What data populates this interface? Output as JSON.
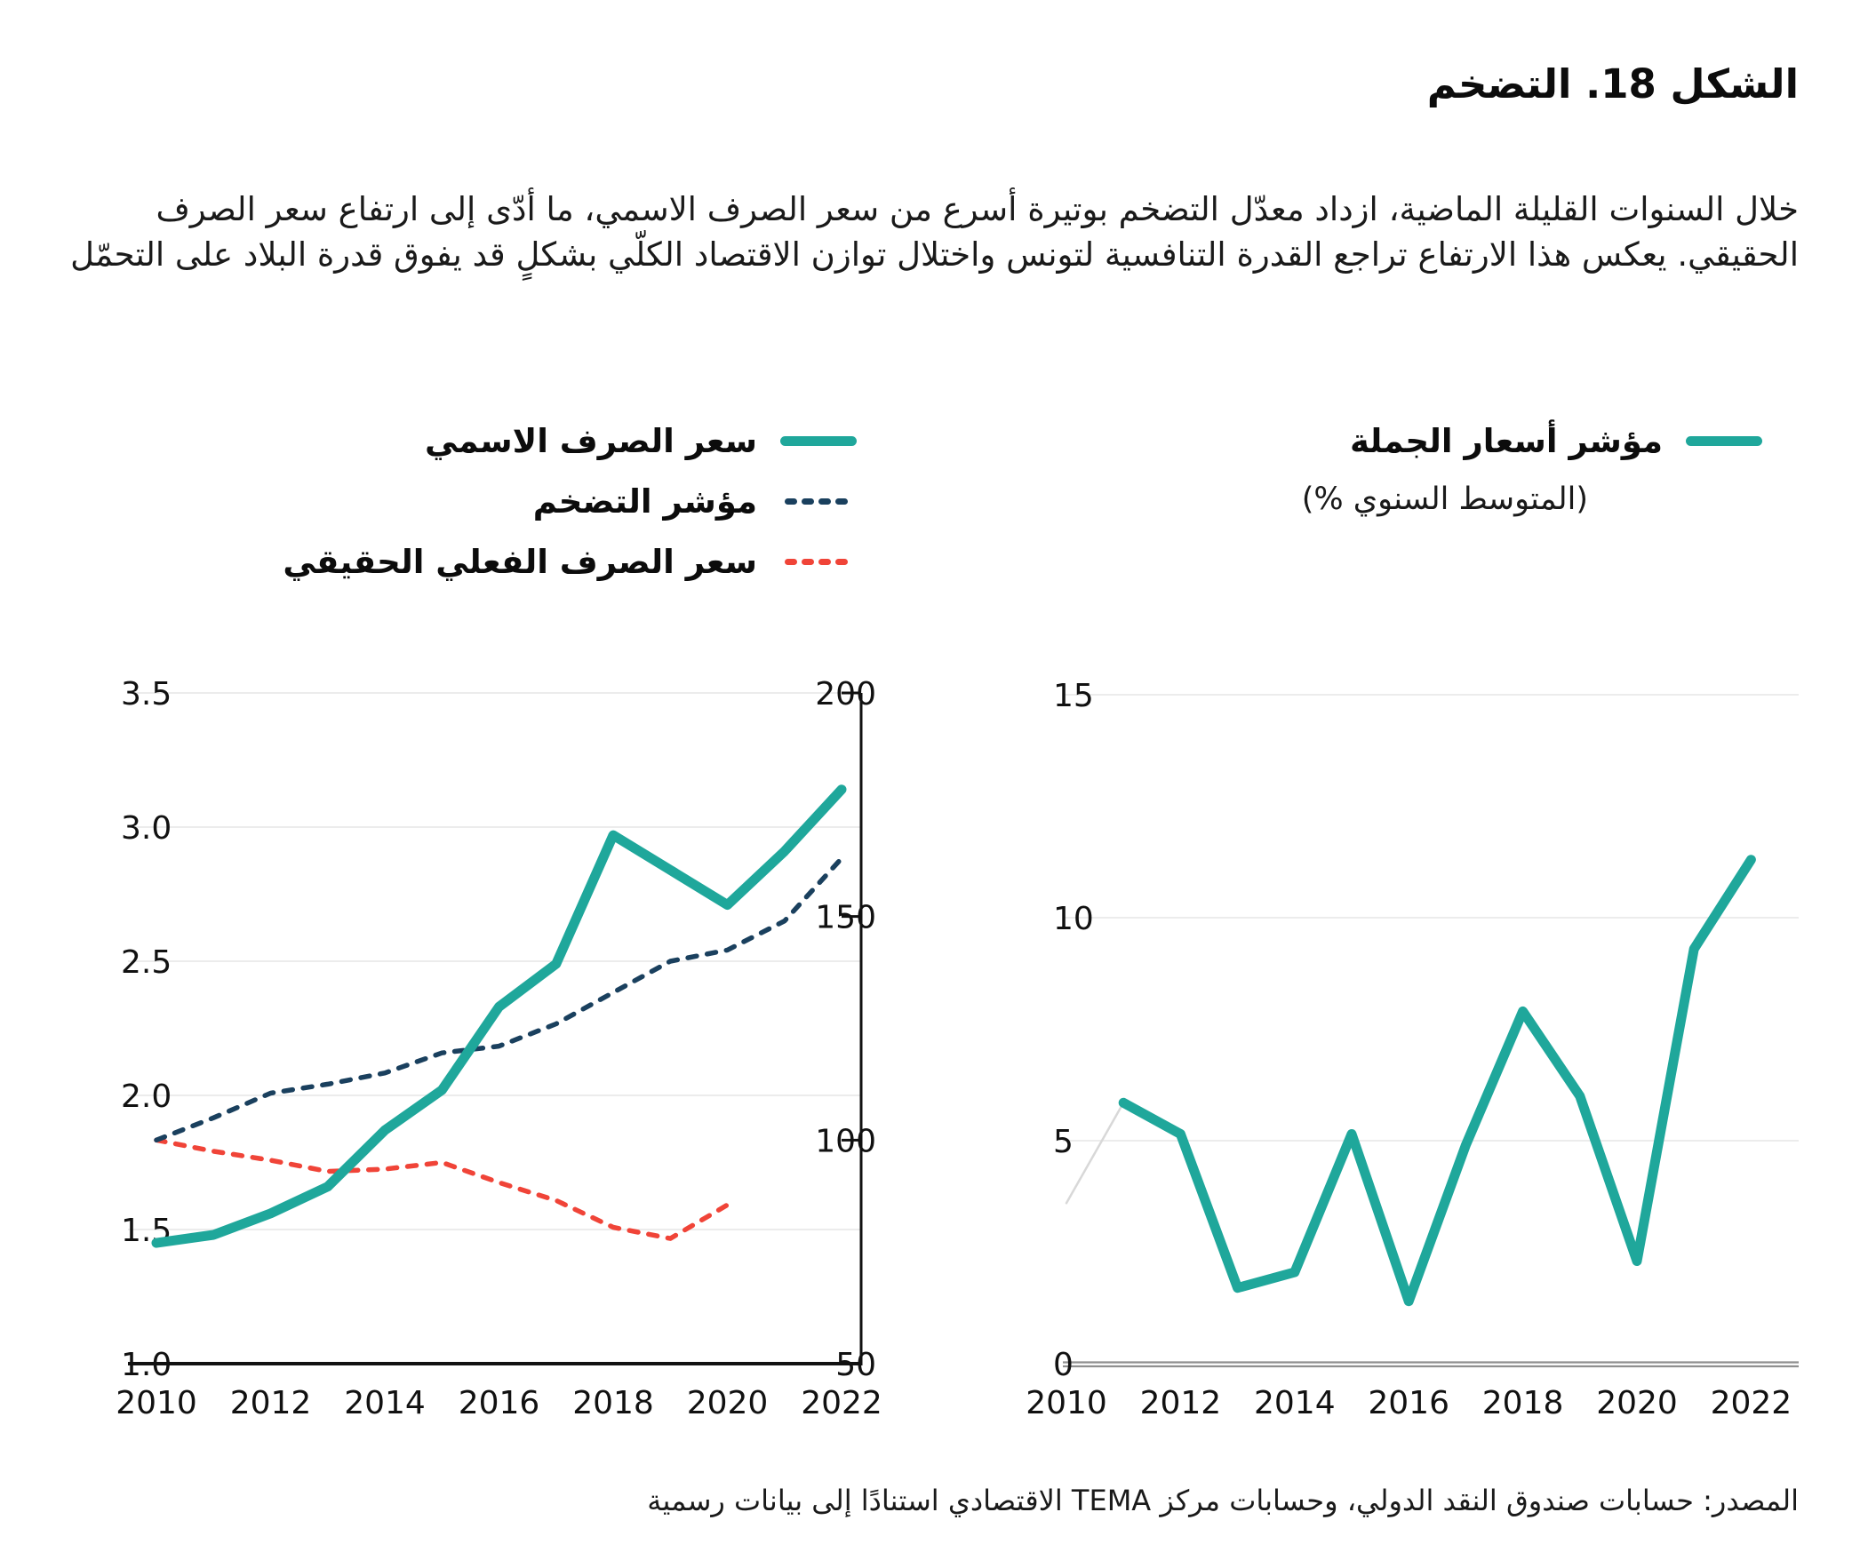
{
  "title": "الشكل 18. التضخم",
  "description": "خلال السنوات القليلة الماضية، ازداد معدّل التضخم بوتيرة أسرع من سعر الصرف الاسمي، ما أدّى إلى ارتفاع سعر الصرف الحقيقي. يعكس هذا الارتفاع تراجع القدرة التنافسية لتونس واختلال توازن الاقتصاد الكلّي بشكلٍ قد يفوق قدرة البلاد على التحمّل",
  "source": "المصدر: حسابات صندوق النقد الدولي،  وحسابات مركز TEMA الاقتصادي استنادًا إلى بيانات رسمية",
  "right_legend_subtitle": "(المتوسط السنوي %)",
  "colors": {
    "teal": "#1FA79B",
    "navy": "#1A405E",
    "red": "#F04438",
    "faint": "#D8D8D8",
    "grid": "#ECECEC",
    "axis": "#111111",
    "axis_double": "#8F8F8F"
  },
  "chart_data": [
    {
      "type": "line",
      "grid": true,
      "legend_position": "top",
      "x": [
        2010,
        2011,
        2012,
        2013,
        2014,
        2015,
        2016,
        2017,
        2018,
        2019,
        2020,
        2021,
        2022
      ],
      "x_ticks": {
        "values": [
          2010,
          2012,
          2014,
          2016,
          2018,
          2020,
          2022
        ],
        "labels": [
          "2010",
          "2012",
          "2014",
          "2016",
          "2018",
          "2020",
          "2022"
        ]
      },
      "left_axis": {
        "min": 1.0,
        "max": 3.5,
        "ticks": [
          3.5,
          3.0,
          2.5,
          2.0,
          1.5,
          1.0
        ],
        "labels": [
          "3.5",
          "3.0",
          "2.5",
          "2.0",
          "1.5",
          "1.0"
        ]
      },
      "right_axis": {
        "min": 50,
        "max": 200,
        "ticks": [
          200,
          150,
          100,
          50
        ],
        "labels": [
          "200",
          "150",
          "100",
          "50"
        ]
      },
      "series": [
        {
          "id": "nominal-exchange-rate",
          "label": "سعر الصرف الاسمي",
          "axis": "left",
          "style": "solid",
          "color": "#1FA79B",
          "values": [
            1.45,
            1.48,
            1.56,
            1.66,
            1.87,
            2.02,
            2.33,
            2.49,
            2.97,
            2.84,
            2.71,
            2.91,
            3.14
          ]
        },
        {
          "id": "inflation-index",
          "label": "مؤشر التضخم",
          "axis": "right",
          "style": "dashed",
          "color": "#1A405E",
          "values": [
            100,
            105,
            110.5,
            112.5,
            115,
            119.5,
            121,
            126,
            133,
            140,
            142.5,
            149,
            163
          ]
        },
        {
          "id": "real-effective-exchange-rate",
          "label": "سعر الصرف الفعلي الحقيقي",
          "axis": "right",
          "style": "dashed",
          "color": "#F04438",
          "values": [
            100,
            97.5,
            95.5,
            93,
            93.5,
            95,
            90.5,
            86.5,
            80.5,
            78,
            85.5,
            null,
            null
          ]
        }
      ]
    },
    {
      "type": "line",
      "grid": true,
      "x": [
        2010,
        2011,
        2012,
        2013,
        2014,
        2015,
        2016,
        2017,
        2018,
        2019,
        2020,
        2021,
        2022
      ],
      "x_ticks": {
        "values": [
          2010,
          2012,
          2014,
          2016,
          2018,
          2020,
          2022
        ],
        "labels": [
          "2010",
          "2012",
          "2014",
          "2016",
          "2018",
          "2020",
          "2022"
        ]
      },
      "y_axis": {
        "min": 0,
        "max": 15,
        "ticks": [
          15,
          10,
          5,
          0
        ],
        "labels": [
          "15",
          "10",
          "5",
          "0"
        ]
      },
      "series": [
        {
          "id": "wholesale-price-index",
          "label": "مؤشر أسعار الجملة",
          "axis": "left",
          "style": "solid",
          "color": "#1FA79B",
          "values": [
            null,
            5.85,
            5.15,
            1.7,
            2.05,
            5.15,
            1.4,
            4.9,
            7.9,
            6.0,
            2.3,
            9.3,
            11.3
          ]
        },
        {
          "id": "lead-in-faint",
          "label": "",
          "axis": "left",
          "style": "faint",
          "color": "#D8D8D8",
          "values": [
            3.6,
            5.85,
            null,
            null,
            null,
            null,
            null,
            null,
            null,
            null,
            null,
            null,
            null
          ]
        }
      ]
    }
  ]
}
